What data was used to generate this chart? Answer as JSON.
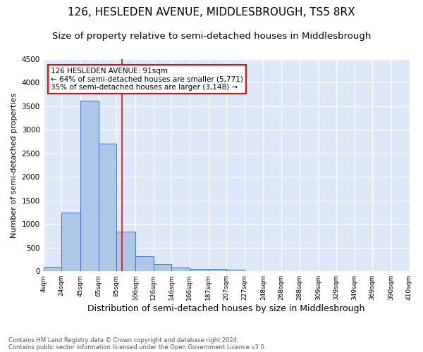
{
  "title": "126, HESLEDEN AVENUE, MIDDLESBROUGH, TS5 8RX",
  "subtitle": "Size of property relative to semi-detached houses in Middlesbrough",
  "xlabel": "Distribution of semi-detached houses by size in Middlesbrough",
  "ylabel": "Number of semi-detached properties",
  "footnote1": "Contains HM Land Registry data © Crown copyright and database right 2024.",
  "footnote2": "Contains public sector information licensed under the Open Government Licence v3.0.",
  "annotation_title": "126 HESLEDEN AVENUE: 91sqm",
  "annotation_line1": "← 64% of semi-detached houses are smaller (5,771)",
  "annotation_line2": "35% of semi-detached houses are larger (3,148) →",
  "bar_edges": [
    4,
    24,
    45,
    65,
    85,
    106,
    126,
    146,
    166,
    187,
    207,
    227,
    248,
    268,
    288,
    309,
    329,
    349,
    369,
    390,
    410
  ],
  "bar_heights": [
    90,
    1240,
    3620,
    2700,
    840,
    315,
    155,
    80,
    55,
    45,
    35,
    0,
    0,
    0,
    0,
    0,
    0,
    0,
    0,
    0
  ],
  "bar_color": "#aec6e8",
  "bar_edge_color": "#4472c4",
  "property_line_x": 91,
  "ylim": [
    0,
    4500
  ],
  "yticks": [
    0,
    500,
    1000,
    1500,
    2000,
    2500,
    3000,
    3500,
    4000,
    4500
  ],
  "bg_color": "#dde8f8",
  "grid_color": "white",
  "annotation_box_color": "white",
  "annotation_box_edge": "red",
  "title_fontsize": 11,
  "subtitle_fontsize": 9.5,
  "xlabel_fontsize": 9,
  "ylabel_fontsize": 8,
  "tick_labels": [
    "4sqm",
    "24sqm",
    "45sqm",
    "65sqm",
    "85sqm",
    "106sqm",
    "126sqm",
    "146sqm",
    "166sqm",
    "187sqm",
    "207sqm",
    "227sqm",
    "248sqm",
    "268sqm",
    "288sqm",
    "309sqm",
    "329sqm",
    "349sqm",
    "369sqm",
    "390sqm",
    "410sqm"
  ]
}
